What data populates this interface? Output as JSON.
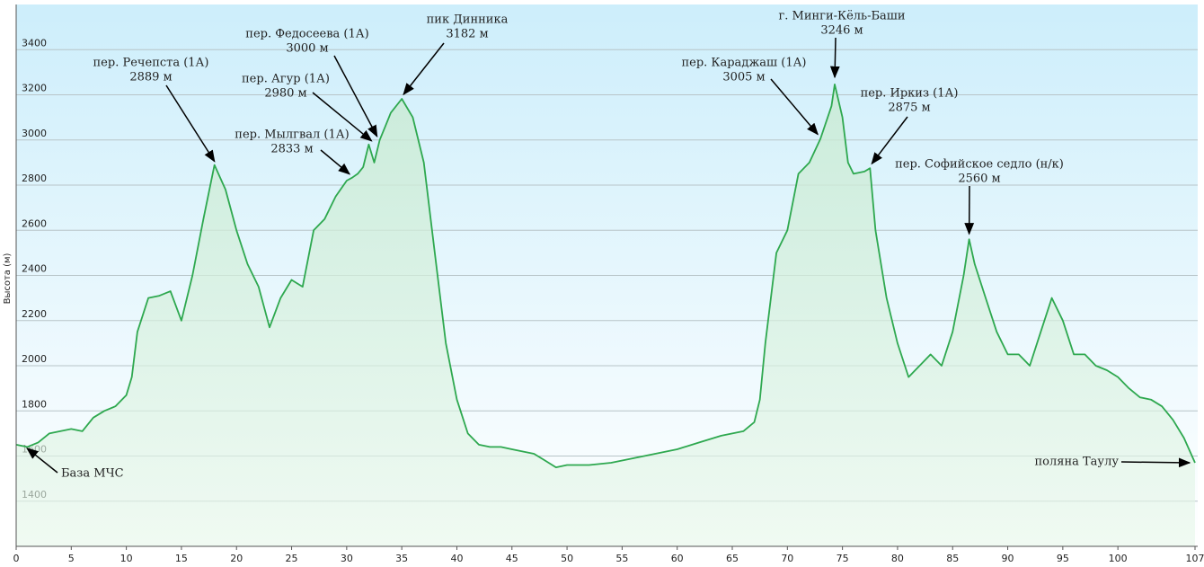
{
  "chart_data": {
    "type": "line",
    "y_label": "Высота (м)",
    "color": "#2ea84f",
    "grid": true,
    "xlim": [
      0,
      107
    ],
    "xticks": [
      0,
      5,
      10,
      15,
      20,
      25,
      30,
      35,
      40,
      45,
      50,
      55,
      60,
      65,
      70,
      75,
      80,
      85,
      90,
      95,
      100,
      107
    ],
    "ylim": [
      1200,
      3600
    ],
    "yticks": [
      1400,
      1600,
      1800,
      2000,
      2200,
      2400,
      2600,
      2800,
      3000,
      3200,
      3400
    ],
    "x": [
      0,
      1,
      2,
      3,
      4,
      5,
      6,
      7,
      8,
      9,
      10,
      10.5,
      11,
      12,
      13,
      14,
      15,
      16,
      17,
      18,
      19,
      20,
      21,
      22,
      23,
      24,
      25,
      26,
      27,
      28,
      29,
      30,
      30.5,
      31,
      31.5,
      32,
      32.5,
      33,
      33.5,
      34,
      35,
      36,
      37,
      38,
      39,
      40,
      41,
      42,
      43,
      44,
      45,
      46,
      47,
      48,
      49,
      50,
      52,
      54,
      56,
      58,
      60,
      62,
      64,
      66,
      67,
      67.5,
      68,
      69,
      70,
      71,
      72,
      73,
      74,
      74.3,
      75,
      75.5,
      76,
      77,
      77.5,
      78,
      79,
      80,
      81,
      82,
      83,
      84,
      85,
      86,
      86.5,
      87,
      88,
      89,
      90,
      91,
      92,
      93,
      94,
      95,
      96,
      97,
      98,
      99,
      100,
      101,
      102,
      103,
      104,
      105,
      106,
      107
    ],
    "values": [
      1650,
      1640,
      1660,
      1700,
      1710,
      1720,
      1710,
      1770,
      1800,
      1820,
      1870,
      1950,
      2150,
      2300,
      2310,
      2330,
      2200,
      2400,
      2650,
      2889,
      2780,
      2600,
      2450,
      2350,
      2170,
      2300,
      2380,
      2350,
      2600,
      2650,
      2750,
      2820,
      2833,
      2850,
      2880,
      2980,
      2900,
      3000,
      3060,
      3120,
      3182,
      3100,
      2900,
      2500,
      2100,
      1850,
      1700,
      1650,
      1640,
      1640,
      1630,
      1620,
      1610,
      1580,
      1550,
      1560,
      1560,
      1570,
      1590,
      1610,
      1630,
      1660,
      1690,
      1710,
      1750,
      1850,
      2100,
      2500,
      2600,
      2850,
      2900,
      3005,
      3150,
      3246,
      3100,
      2900,
      2850,
      2860,
      2875,
      2600,
      2300,
      2100,
      1950,
      2000,
      2050,
      2000,
      2150,
      2400,
      2560,
      2450,
      2300,
      2150,
      2050,
      2050,
      2000,
      2150,
      2300,
      2200,
      2050,
      2050,
      2000,
      1980,
      1950,
      1900,
      1860,
      1850,
      1820,
      1760,
      1680,
      1570
    ],
    "annotations": [
      {
        "lines": [
          "пер. Речепста (1А)",
          "2889 м"
        ],
        "x": 18,
        "y": 2889
      },
      {
        "lines": [
          "пер. Федосеева (1А)",
          "3000 м"
        ],
        "x": 33,
        "y": 3000
      },
      {
        "lines": [
          "пер. Агур (1А)",
          "2980 м"
        ],
        "x": 32.5,
        "y": 2980
      },
      {
        "lines": [
          "пер. Мылгвал (1А)",
          "2833 м"
        ],
        "x": 30.5,
        "y": 2833
      },
      {
        "lines": [
          "пик Динника",
          "3182 м"
        ],
        "x": 35,
        "y": 3182
      },
      {
        "lines": [
          "г. Минги-Кёль-Баши",
          "3246 м"
        ],
        "x": 74.3,
        "y": 3246
      },
      {
        "lines": [
          "пер. Караджаш (1А)",
          "3005 м"
        ],
        "x": 73,
        "y": 3005
      },
      {
        "lines": [
          "пер. Иркиз (1А)",
          "2875 м"
        ],
        "x": 77.5,
        "y": 2875
      },
      {
        "lines": [
          "пер. Софийское седло (н/к)",
          "2560 м"
        ],
        "x": 86.5,
        "y": 2560
      },
      {
        "lines": [
          "База МЧС"
        ],
        "x": 0.5,
        "y": 1650
      },
      {
        "lines": [
          "поляна Таулу"
        ],
        "x": 107,
        "y": 1570
      }
    ]
  }
}
